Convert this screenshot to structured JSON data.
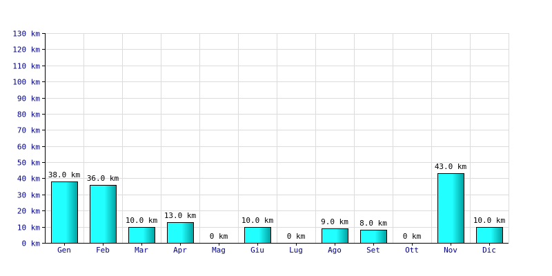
{
  "chart_data": {
    "type": "bar",
    "categories": [
      "Gen",
      "Feb",
      "Mar",
      "Apr",
      "Mag",
      "Giu",
      "Lug",
      "Ago",
      "Set",
      "Ott",
      "Nov",
      "Dic"
    ],
    "values": [
      38,
      36,
      10,
      13,
      0,
      10,
      0,
      9,
      8,
      0,
      43,
      10
    ],
    "data_labels": [
      "38.0 km",
      "36.0 km",
      "10.0 km",
      "13.0 km",
      "0 km",
      "10.0 km",
      "0 km",
      "9.0 km",
      "8.0 km",
      "0 km",
      "43.0 km",
      "10.0 km"
    ],
    "y_ticks": [
      {
        "value": 0,
        "label": "0 km"
      },
      {
        "value": 10,
        "label": "10 km"
      },
      {
        "value": 20,
        "label": "20 km"
      },
      {
        "value": 30,
        "label": "30 km"
      },
      {
        "value": 40,
        "label": "40 km"
      },
      {
        "value": 50,
        "label": "50 km"
      },
      {
        "value": 60,
        "label": "60 km"
      },
      {
        "value": 70,
        "label": "70 km"
      },
      {
        "value": 80,
        "label": "80 km"
      },
      {
        "value": 90,
        "label": "90 km"
      },
      {
        "value": 100,
        "label": "100 km"
      },
      {
        "value": 110,
        "label": "110 km"
      },
      {
        "value": 120,
        "label": "120 km"
      },
      {
        "value": 130,
        "label": "130 km"
      }
    ],
    "ylim": [
      0,
      130
    ],
    "grid": true,
    "title": "",
    "xlabel": "",
    "ylabel": "",
    "colors": {
      "bar_light": "#22ffff",
      "bar_dark": "#00a0a0",
      "bar_stroke": "#000000",
      "grid": "#dcdcdc",
      "axis": "#000000",
      "tick_text": "#000080",
      "data_text": "#000000"
    }
  }
}
